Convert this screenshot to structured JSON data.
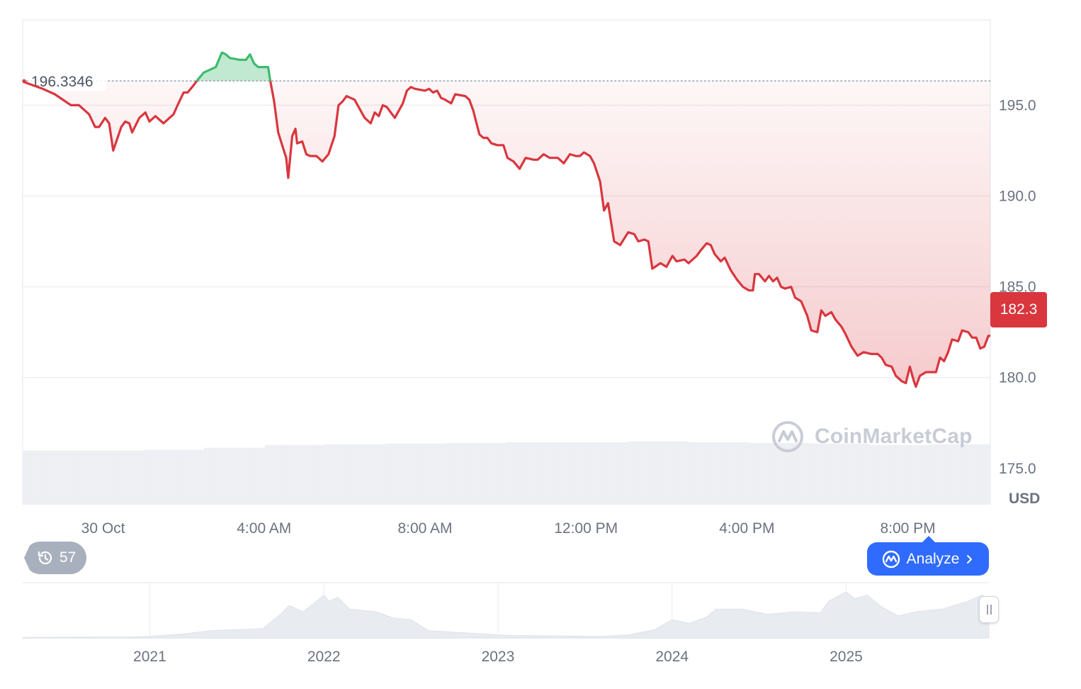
{
  "colors": {
    "down_line": "#d9363e",
    "up_line": "#3dbb6f",
    "grid": "#eceef2",
    "volume": "#eceef2",
    "badge_bg": "#d9363e",
    "button_bg": "#2f6bff"
  },
  "chart_data": [
    {
      "type": "line",
      "title": "",
      "xlabel": "",
      "ylabel": "USD",
      "ylim": [
        173.0,
        199.7
      ],
      "y_ticks": [
        "195.0",
        "190.0",
        "185.0",
        "180.0",
        "175.0"
      ],
      "y_tick_values": [
        195,
        190,
        185,
        180,
        175
      ],
      "x_ticks": [
        "30 Oct",
        "4:00 AM",
        "8:00 AM",
        "12:00 PM",
        "4:00 PM",
        "8:00 PM"
      ],
      "x_tick_hours": [
        0,
        4,
        8,
        12,
        16,
        20
      ],
      "x_range_hours": [
        -2.0,
        22.05
      ],
      "grid": true,
      "reference_line": {
        "value": 196.3346,
        "label": "196.3346",
        "style": "dotted"
      },
      "current_value": 182.3,
      "current_label": "182.3",
      "series": [
        {
          "points": [
            [
              -2.0,
              196.3
            ],
            [
              -1.5,
              195.9
            ],
            [
              -1.2,
              195.6
            ],
            [
              -0.8,
              195.0
            ],
            [
              -0.6,
              195.0
            ],
            [
              -0.35,
              194.5
            ],
            [
              -0.2,
              193.8
            ],
            [
              -0.1,
              193.8
            ],
            [
              0.05,
              194.3
            ],
            [
              0.15,
              194.0
            ],
            [
              0.25,
              192.5
            ],
            [
              0.45,
              193.8
            ],
            [
              0.55,
              194.1
            ],
            [
              0.65,
              194.0
            ],
            [
              0.72,
              193.5
            ],
            [
              0.9,
              194.3
            ],
            [
              1.05,
              194.6
            ],
            [
              1.15,
              194.1
            ],
            [
              1.3,
              194.4
            ],
            [
              1.5,
              194.0
            ],
            [
              1.65,
              194.3
            ],
            [
              1.75,
              194.5
            ],
            [
              1.85,
              195.0
            ],
            [
              2.0,
              195.7
            ],
            [
              2.1,
              195.7
            ],
            [
              2.25,
              196.1
            ],
            [
              2.35,
              196.4
            ],
            [
              2.5,
              196.8
            ],
            [
              2.7,
              197.0
            ],
            [
              2.8,
              197.1
            ],
            [
              2.95,
              197.9
            ],
            [
              3.05,
              197.8
            ],
            [
              3.15,
              197.6
            ],
            [
              3.4,
              197.5
            ],
            [
              3.55,
              197.5
            ],
            [
              3.65,
              197.8
            ],
            [
              3.75,
              197.3
            ],
            [
              3.85,
              197.1
            ],
            [
              4.1,
              197.1
            ],
            [
              4.15,
              196.4
            ],
            [
              4.25,
              195.2
            ],
            [
              4.35,
              193.5
            ],
            [
              4.45,
              192.8
            ],
            [
              4.55,
              192.1
            ],
            [
              4.6,
              191.0
            ],
            [
              4.7,
              193.3
            ],
            [
              4.78,
              193.7
            ],
            [
              4.82,
              192.9
            ],
            [
              4.95,
              193.0
            ],
            [
              5.05,
              192.3
            ],
            [
              5.15,
              192.2
            ],
            [
              5.3,
              192.2
            ],
            [
              5.45,
              191.9
            ],
            [
              5.6,
              192.3
            ],
            [
              5.75,
              193.3
            ],
            [
              5.85,
              195.0
            ],
            [
              5.95,
              195.2
            ],
            [
              6.05,
              195.5
            ],
            [
              6.25,
              195.3
            ],
            [
              6.3,
              195.1
            ],
            [
              6.4,
              194.7
            ],
            [
              6.5,
              194.3
            ],
            [
              6.65,
              194.0
            ],
            [
              6.75,
              194.6
            ],
            [
              6.85,
              194.4
            ],
            [
              6.95,
              195.0
            ],
            [
              7.05,
              194.9
            ],
            [
              7.15,
              194.6
            ],
            [
              7.25,
              194.3
            ],
            [
              7.45,
              195.1
            ],
            [
              7.55,
              195.8
            ],
            [
              7.65,
              196.0
            ],
            [
              7.75,
              195.9
            ],
            [
              8.0,
              195.8
            ],
            [
              8.1,
              195.9
            ],
            [
              8.2,
              195.7
            ],
            [
              8.3,
              195.8
            ],
            [
              8.4,
              195.4
            ],
            [
              8.5,
              195.3
            ],
            [
              8.65,
              195.1
            ],
            [
              8.75,
              195.6
            ],
            [
              9.0,
              195.5
            ],
            [
              9.1,
              195.3
            ],
            [
              9.2,
              194.7
            ],
            [
              9.35,
              193.4
            ],
            [
              9.45,
              193.2
            ],
            [
              9.55,
              193.2
            ],
            [
              9.65,
              192.9
            ],
            [
              9.8,
              192.8
            ],
            [
              9.95,
              192.8
            ],
            [
              10.05,
              192.1
            ],
            [
              10.2,
              191.9
            ],
            [
              10.35,
              191.5
            ],
            [
              10.5,
              192.1
            ],
            [
              10.7,
              192.0
            ],
            [
              10.8,
              192.0
            ],
            [
              10.95,
              192.3
            ],
            [
              11.1,
              192.1
            ],
            [
              11.3,
              192.1
            ],
            [
              11.45,
              191.8
            ],
            [
              11.6,
              192.3
            ],
            [
              11.75,
              192.2
            ],
            [
              11.85,
              192.2
            ],
            [
              11.95,
              192.4
            ],
            [
              12.1,
              192.2
            ],
            [
              12.2,
              191.8
            ],
            [
              12.35,
              190.8
            ],
            [
              12.45,
              189.2
            ],
            [
              12.55,
              189.6
            ],
            [
              12.7,
              187.5
            ],
            [
              12.85,
              187.3
            ],
            [
              13.05,
              188.0
            ],
            [
              13.2,
              187.9
            ],
            [
              13.3,
              187.5
            ],
            [
              13.45,
              187.6
            ],
            [
              13.55,
              187.5
            ],
            [
              13.65,
              186.0
            ],
            [
              13.85,
              186.3
            ],
            [
              14.0,
              186.1
            ],
            [
              14.15,
              186.7
            ],
            [
              14.25,
              186.4
            ],
            [
              14.45,
              186.5
            ],
            [
              14.55,
              186.3
            ],
            [
              14.75,
              186.7
            ],
            [
              14.85,
              187.0
            ],
            [
              15.0,
              187.4
            ],
            [
              15.1,
              187.3
            ],
            [
              15.2,
              186.8
            ],
            [
              15.35,
              186.4
            ],
            [
              15.45,
              186.6
            ],
            [
              15.6,
              185.9
            ],
            [
              15.75,
              185.4
            ],
            [
              15.9,
              185.0
            ],
            [
              16.05,
              184.8
            ],
            [
              16.15,
              184.8
            ],
            [
              16.2,
              185.7
            ],
            [
              16.3,
              185.7
            ],
            [
              16.45,
              185.3
            ],
            [
              16.55,
              185.6
            ],
            [
              16.65,
              185.3
            ],
            [
              16.75,
              185.5
            ],
            [
              16.85,
              185.0
            ],
            [
              16.95,
              184.9
            ],
            [
              17.1,
              185.0
            ],
            [
              17.2,
              184.4
            ],
            [
              17.35,
              184.2
            ],
            [
              17.5,
              183.4
            ],
            [
              17.6,
              182.6
            ],
            [
              17.75,
              182.5
            ],
            [
              17.85,
              183.7
            ],
            [
              17.95,
              183.4
            ],
            [
              18.1,
              183.6
            ],
            [
              18.2,
              183.2
            ],
            [
              18.35,
              182.8
            ],
            [
              18.45,
              182.4
            ],
            [
              18.6,
              181.7
            ],
            [
              18.75,
              181.2
            ],
            [
              18.9,
              181.4
            ],
            [
              19.1,
              181.3
            ],
            [
              19.25,
              181.3
            ],
            [
              19.35,
              181.1
            ],
            [
              19.45,
              180.7
            ],
            [
              19.6,
              180.6
            ],
            [
              19.7,
              180.1
            ],
            [
              19.85,
              179.8
            ],
            [
              19.95,
              179.7
            ],
            [
              20.05,
              180.6
            ],
            [
              20.15,
              179.8
            ],
            [
              20.2,
              179.5
            ],
            [
              20.3,
              180.1
            ],
            [
              20.45,
              180.3
            ],
            [
              20.55,
              180.3
            ],
            [
              20.7,
              180.3
            ],
            [
              20.8,
              181.1
            ],
            [
              20.9,
              180.9
            ],
            [
              21.0,
              181.4
            ],
            [
              21.1,
              182.1
            ],
            [
              21.25,
              182.0
            ],
            [
              21.35,
              182.6
            ],
            [
              21.5,
              182.5
            ],
            [
              21.6,
              182.2
            ],
            [
              21.7,
              182.2
            ],
            [
              21.8,
              181.6
            ],
            [
              21.9,
              181.7
            ],
            [
              22.0,
              182.3
            ],
            [
              22.05,
              182.3
            ]
          ]
        }
      ]
    },
    {
      "type": "area",
      "title": "",
      "xlabel": "",
      "ylabel": "",
      "x_ticks": [
        "2021",
        "2022",
        "2023",
        "2024",
        "2025"
      ],
      "x_tick_years": [
        2021,
        2022,
        2023,
        2024,
        2025
      ],
      "x_range_years": [
        2020.27,
        2025.82
      ],
      "ylim": [
        0,
        1
      ],
      "grid": false,
      "series": [
        {
          "points": [
            [
              2020.27,
              0.01
            ],
            [
              2020.9,
              0.02
            ],
            [
              2021.0,
              0.03
            ],
            [
              2021.2,
              0.08
            ],
            [
              2021.35,
              0.14
            ],
            [
              2021.5,
              0.16
            ],
            [
              2021.65,
              0.18
            ],
            [
              2021.75,
              0.45
            ],
            [
              2021.8,
              0.62
            ],
            [
              2021.88,
              0.5
            ],
            [
              2021.95,
              0.68
            ],
            [
              2022.0,
              0.82
            ],
            [
              2022.03,
              0.7
            ],
            [
              2022.08,
              0.78
            ],
            [
              2022.15,
              0.55
            ],
            [
              2022.3,
              0.5
            ],
            [
              2022.4,
              0.38
            ],
            [
              2022.5,
              0.35
            ],
            [
              2022.6,
              0.14
            ],
            [
              2022.8,
              0.1
            ],
            [
              2022.95,
              0.07
            ],
            [
              2023.05,
              0.05
            ],
            [
              2023.3,
              0.04
            ],
            [
              2023.6,
              0.03
            ],
            [
              2023.75,
              0.06
            ],
            [
              2023.9,
              0.16
            ],
            [
              2024.0,
              0.35
            ],
            [
              2024.1,
              0.28
            ],
            [
              2024.2,
              0.4
            ],
            [
              2024.25,
              0.55
            ],
            [
              2024.4,
              0.55
            ],
            [
              2024.55,
              0.45
            ],
            [
              2024.7,
              0.5
            ],
            [
              2024.85,
              0.48
            ],
            [
              2024.9,
              0.7
            ],
            [
              2025.0,
              0.88
            ],
            [
              2025.05,
              0.75
            ],
            [
              2025.12,
              0.82
            ],
            [
              2025.2,
              0.6
            ],
            [
              2025.3,
              0.42
            ],
            [
              2025.4,
              0.5
            ],
            [
              2025.55,
              0.55
            ],
            [
              2025.7,
              0.7
            ],
            [
              2025.78,
              0.82
            ],
            [
              2025.82,
              0.72
            ]
          ]
        }
      ]
    }
  ],
  "volume_levels": [
    0.78,
    0.78,
    0.79,
    0.82,
    0.86,
    0.87,
    0.88,
    0.89,
    0.9,
    0.9,
    0.91,
    0.9,
    0.89,
    0.88,
    0.86,
    0.87
  ],
  "unit": "USD",
  "watermark": "CoinMarketCap",
  "history": {
    "count": "57",
    "icon": "history-clock-icon"
  },
  "analyze": {
    "label": "Analyze",
    "icon": "coinmarketcap-logo-icon",
    "chevron": "chevron-right-icon"
  },
  "range_handle": {
    "icon": "grip-icon"
  }
}
